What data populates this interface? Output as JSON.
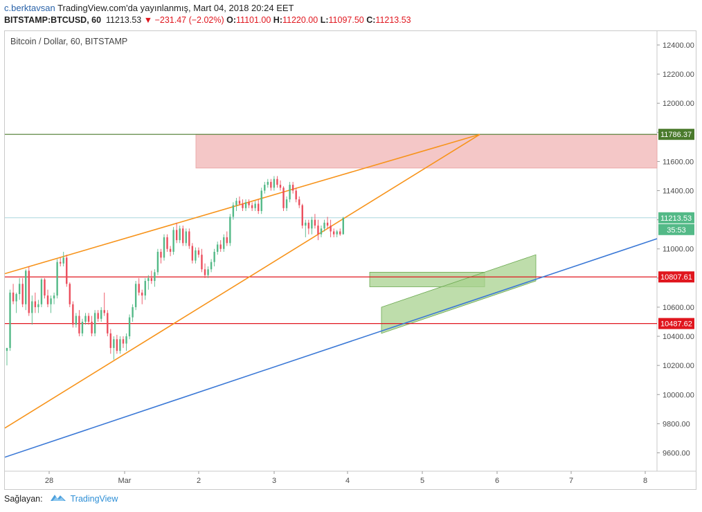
{
  "header": {
    "user": "c.berktavsan",
    "published_text": "TradingView.com'da yayınlanmış, Mart 04, 2018 20:24 EET",
    "symbol": "BITSTAMP:BTCUSD, 60",
    "last": "11213.53",
    "change": "−231.47 (−2.02%)",
    "open_label": "O:",
    "open_value": "11101.00",
    "high_label": "H:",
    "high_value": "11220.00",
    "low_label": "L:",
    "low_value": "11097.50",
    "close_label": "C:",
    "close_value": "11213.53",
    "change_arrow": "▼"
  },
  "footer": {
    "label": "Sağlayan:",
    "brand": "TradingView"
  },
  "colors": {
    "up": "#53b987",
    "down": "#eb4d5c",
    "trend_orange": "#f7931a",
    "trend_blue": "#3a78d6",
    "support_red": "#e0161e",
    "resistance_green": "#4a7a2c",
    "zone_red": "#f4c7c7",
    "zone_green": "#a8d18f",
    "last_price": "#53b987"
  },
  "chart_data": {
    "type": "candlestick",
    "title": "Bitcoin / Dollar, 60, BITSTAMP",
    "xlabel": "",
    "ylabel": "",
    "x_ticks": [
      "28",
      "Mar",
      "2",
      "3",
      "4",
      "5",
      "6",
      "7",
      "8"
    ],
    "y_ticks": [
      "12400.00",
      "12200.00",
      "12000.00",
      "11800.00",
      "11600.00",
      "11400.00",
      "11200.00",
      "11000.00",
      "10800.00",
      "10600.00",
      "10400.00",
      "10200.00",
      "10000.00",
      "9800.00",
      "9600.00"
    ],
    "ylim": [
      9460,
      12530
    ],
    "levels": [
      {
        "label": "11786.37",
        "value": 11786.37,
        "color": "green"
      },
      {
        "label": "10807.61",
        "value": 10807.61,
        "color": "red"
      },
      {
        "label": "10487.62",
        "value": 10487.62,
        "color": "red"
      }
    ],
    "last_price": {
      "label": "11213.53",
      "value": 11213.53,
      "countdown": "35:53"
    },
    "candles": [
      [
        10300,
        10320,
        10200,
        10320
      ],
      [
        10320,
        10720,
        10300,
        10700
      ],
      [
        10700,
        10760,
        10620,
        10640
      ],
      [
        10640,
        10700,
        10560,
        10690
      ],
      [
        10690,
        10800,
        10650,
        10760
      ],
      [
        10760,
        10800,
        10600,
        10620
      ],
      [
        10620,
        10860,
        10580,
        10850
      ],
      [
        10850,
        10880,
        10540,
        10560
      ],
      [
        10560,
        10680,
        10480,
        10640
      ],
      [
        10640,
        10700,
        10560,
        10600
      ],
      [
        10600,
        10650,
        10560,
        10620
      ],
      [
        10620,
        10800,
        10600,
        10790
      ],
      [
        10790,
        10800,
        10660,
        10680
      ],
      [
        10680,
        10720,
        10600,
        10620
      ],
      [
        10620,
        10680,
        10560,
        10660
      ],
      [
        10660,
        10700,
        10620,
        10680
      ],
      [
        10680,
        10930,
        10660,
        10910
      ],
      [
        10910,
        10940,
        10880,
        10900
      ],
      [
        10900,
        10980,
        10880,
        10940
      ],
      [
        10940,
        10960,
        10740,
        10760
      ],
      [
        10760,
        10770,
        10600,
        10620
      ],
      [
        10620,
        10640,
        10460,
        10480
      ],
      [
        10480,
        10560,
        10460,
        10540
      ],
      [
        10540,
        10580,
        10400,
        10420
      ],
      [
        10420,
        10520,
        10400,
        10500
      ],
      [
        10500,
        10560,
        10480,
        10540
      ],
      [
        10540,
        10560,
        10480,
        10500
      ],
      [
        10500,
        10540,
        10400,
        10420
      ],
      [
        10420,
        10580,
        10400,
        10560
      ],
      [
        10560,
        10580,
        10500,
        10520
      ],
      [
        10520,
        10600,
        10500,
        10580
      ],
      [
        10580,
        10700,
        10540,
        10560
      ],
      [
        10560,
        10580,
        10400,
        10420
      ],
      [
        10420,
        10450,
        10280,
        10320
      ],
      [
        10320,
        10400,
        10240,
        10380
      ],
      [
        10380,
        10410,
        10280,
        10300
      ],
      [
        10300,
        10400,
        10280,
        10380
      ],
      [
        10380,
        10400,
        10320,
        10350
      ],
      [
        10350,
        10420,
        10300,
        10400
      ],
      [
        10400,
        10550,
        10380,
        10530
      ],
      [
        10530,
        10620,
        10500,
        10600
      ],
      [
        10600,
        10780,
        10580,
        10760
      ],
      [
        10760,
        10800,
        10680,
        10700
      ],
      [
        10700,
        10720,
        10620,
        10680
      ],
      [
        10680,
        10800,
        10650,
        10780
      ],
      [
        10780,
        10820,
        10720,
        10800
      ],
      [
        10800,
        10850,
        10760,
        10780
      ],
      [
        10780,
        10860,
        10740,
        10840
      ],
      [
        10840,
        11000,
        10820,
        10980
      ],
      [
        10980,
        11000,
        10900,
        10940
      ],
      [
        10940,
        11100,
        10920,
        11080
      ],
      [
        11080,
        11100,
        10980,
        11000
      ],
      [
        11000,
        11020,
        10950,
        10980
      ],
      [
        10980,
        11150,
        10960,
        11130
      ],
      [
        11130,
        11180,
        11040,
        11060
      ],
      [
        11060,
        11160,
        11040,
        11140
      ],
      [
        11140,
        11160,
        11020,
        11040
      ],
      [
        11040,
        11140,
        11020,
        11120
      ],
      [
        11120,
        11140,
        11000,
        11020
      ],
      [
        11020,
        11040,
        10900,
        10920
      ],
      [
        10920,
        11010,
        10900,
        10990
      ],
      [
        10990,
        11010,
        10940,
        10960
      ],
      [
        10960,
        11000,
        10840,
        10860
      ],
      [
        10860,
        10900,
        10800,
        10820
      ],
      [
        10820,
        10880,
        10800,
        10860
      ],
      [
        10860,
        10930,
        10840,
        10910
      ],
      [
        10910,
        11000,
        10880,
        10980
      ],
      [
        10980,
        11050,
        10960,
        11030
      ],
      [
        11030,
        11060,
        10980,
        11000
      ],
      [
        11000,
        11100,
        10980,
        11080
      ],
      [
        11080,
        11120,
        11020,
        11040
      ],
      [
        11040,
        11240,
        11020,
        11220
      ],
      [
        11220,
        11320,
        11200,
        11300
      ],
      [
        11300,
        11350,
        11260,
        11330
      ],
      [
        11330,
        11360,
        11300,
        11310
      ],
      [
        11310,
        11340,
        11260,
        11280
      ],
      [
        11280,
        11340,
        11260,
        11320
      ],
      [
        11320,
        11340,
        11280,
        11300
      ],
      [
        11300,
        11320,
        11260,
        11280
      ],
      [
        11280,
        11330,
        11260,
        11310
      ],
      [
        11310,
        11340,
        11240,
        11260
      ],
      [
        11260,
        11420,
        11240,
        11400
      ],
      [
        11400,
        11460,
        11380,
        11440
      ],
      [
        11440,
        11480,
        11420,
        11460
      ],
      [
        11460,
        11480,
        11400,
        11420
      ],
      [
        11420,
        11500,
        11400,
        11480
      ],
      [
        11480,
        11500,
        11420,
        11440
      ],
      [
        11440,
        11470,
        11400,
        11420
      ],
      [
        11420,
        11430,
        11260,
        11280
      ],
      [
        11280,
        11360,
        11260,
        11340
      ],
      [
        11340,
        11460,
        11320,
        11440
      ],
      [
        11440,
        11460,
        11380,
        11400
      ],
      [
        11400,
        11420,
        11320,
        11340
      ],
      [
        11340,
        11360,
        11280,
        11300
      ],
      [
        11300,
        11310,
        11140,
        11160
      ],
      [
        11160,
        11200,
        11080,
        11180
      ],
      [
        11180,
        11200,
        11100,
        11140
      ],
      [
        11140,
        11220,
        11100,
        11200
      ],
      [
        11200,
        11240,
        11140,
        11160
      ],
      [
        11160,
        11200,
        11060,
        11100
      ],
      [
        11100,
        11160,
        11080,
        11140
      ],
      [
        11140,
        11200,
        11120,
        11180
      ],
      [
        11180,
        11220,
        11140,
        11160
      ],
      [
        11160,
        11200,
        11080,
        11120
      ],
      [
        11120,
        11140,
        11080,
        11100
      ],
      [
        11100,
        11130,
        11080,
        11120
      ],
      [
        11120,
        11140,
        11090,
        11100
      ],
      [
        11101,
        11220,
        11097.5,
        11213.53
      ]
    ]
  }
}
